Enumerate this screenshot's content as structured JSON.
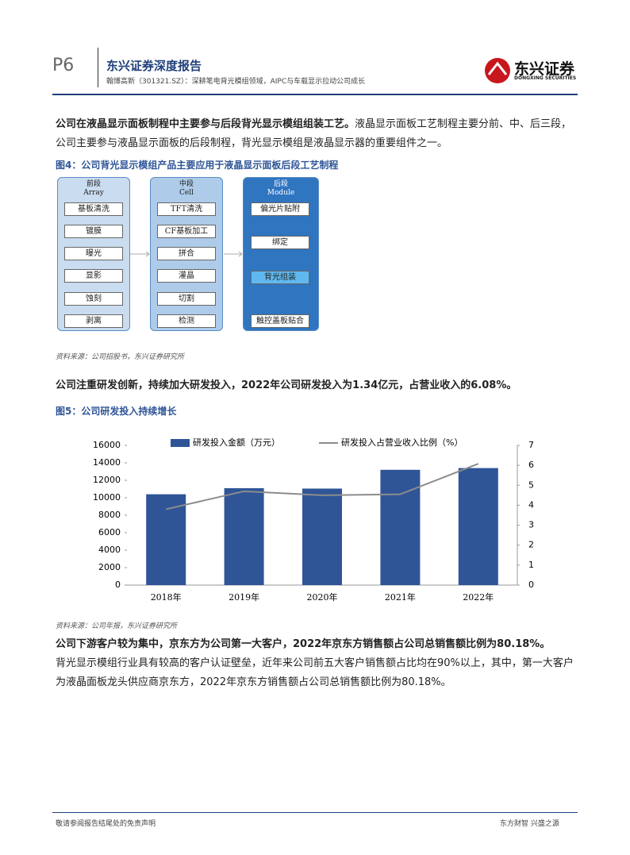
{
  "header": {
    "page": "P6",
    "brand": "东兴证券深度报告",
    "subtitle": "翰博高新（301321.SZ）：深耕笔电背光模组领域，AIPC与车载显示拉动公司成长",
    "logo": "东兴证券",
    "logo_en": "DONGXING SECURITIES"
  },
  "para1": {
    "lead": "公司在液晶显示面板制程中主要参与后段背光显示模组组装工艺。",
    "text": "液晶显示面板工艺制程主要分前、中、后三段，公司主要参与液晶显示面板的后段制程，背光显示模组是液晶显示器的重要组件之一。"
  },
  "figure4": {
    "title": "图4：公司背光显示模组产品主要应用于液晶显示面板后段工艺制程",
    "columns": [
      {
        "name": "前段",
        "en": "Array",
        "items": [
          "基板清洗",
          "镀膜",
          "曝光",
          "显影",
          "蚀刻",
          "剥离"
        ]
      },
      {
        "name": "中段",
        "en": "Cell",
        "items": [
          "TFT清洗",
          "CF基板加工",
          "拼合",
          "灌晶",
          "切割",
          "检测"
        ]
      },
      {
        "name": "后段",
        "en": "Module",
        "items": [
          "偏光片贴附",
          "绑定",
          "背光组装",
          "触控盖板贴合"
        ]
      }
    ],
    "source": "资料来源：公司招股书，东兴证券研究所"
  },
  "para2": {
    "lead": "公司注重研发创新，持续加大研发投入，2022年公司研发投入为1.34亿元，占营业收入的6.08%。"
  },
  "figure5": {
    "title": "图5：公司研发投入持续增长",
    "source": "资料来源：公司年报，东兴证券研究所"
  },
  "chart_data": {
    "type": "bar",
    "categories": [
      "2018年",
      "2019年",
      "2020年",
      "2021年",
      "2022年"
    ],
    "series": [
      {
        "name": "研发投入金额（万元）",
        "color": "#2f5597",
        "type": "bar",
        "values": [
          10400,
          11100,
          11050,
          13200,
          13400
        ]
      },
      {
        "name": "研发投入占营业收入比例（%）",
        "color": "#8c8c8c",
        "type": "line",
        "axis": "y2",
        "values": [
          3.8,
          4.7,
          4.5,
          4.55,
          6.08
        ]
      }
    ],
    "ylim": [
      0,
      16000
    ],
    "yticks": [
      0,
      2000,
      4000,
      6000,
      8000,
      10000,
      12000,
      14000,
      16000
    ],
    "y2lim": [
      0,
      7
    ],
    "y2ticks": [
      0,
      1,
      2,
      3,
      4,
      5,
      6,
      7
    ],
    "legend": "top"
  },
  "para3": {
    "lead": "公司下游客户较为集中，京东方为公司第一大客户，2022年京东方销售额占公司总销售额比例为80.18%。",
    "text": "背光显示模组行业具有较高的客户认证壁垒，近年来公司前五大客户销售额占比均在90%以上，其中，第一大客户为液晶面板龙头供应商京东方，2022年京东方销售额占公司总销售额比例为80.18%。"
  },
  "footer": {
    "left": "敬请参阅报告结尾处的免责声明",
    "right": "东方财智 兴盛之源"
  }
}
